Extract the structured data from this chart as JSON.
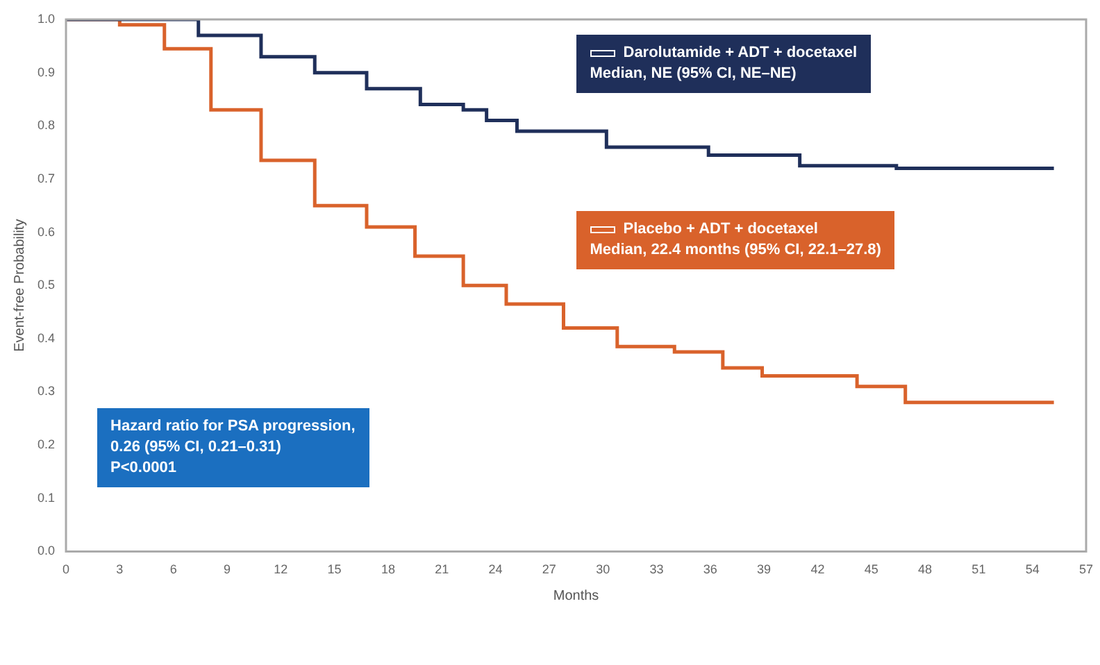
{
  "chart_data": {
    "type": "step",
    "xlabel": "Months",
    "ylabel": "Event-free Probability",
    "xlim": [
      0,
      57
    ],
    "xticks": [
      0,
      3,
      6,
      9,
      12,
      15,
      18,
      21,
      24,
      27,
      30,
      33,
      36,
      39,
      42,
      45,
      48,
      51,
      54,
      57
    ],
    "ylim": [
      0,
      1
    ],
    "yticks": [
      {
        "value": 0,
        "label": "0.0"
      },
      {
        "value": 0.1,
        "label": "0.1"
      },
      {
        "value": 0.2,
        "label": "0.2"
      },
      {
        "value": 0.3,
        "label": "0.3"
      },
      {
        "value": 0.4,
        "label": "0.4"
      },
      {
        "value": 0.5,
        "label": "0.5"
      },
      {
        "value": 0.6,
        "label": "0.6"
      },
      {
        "value": 0.7,
        "label": "0.7"
      },
      {
        "value": 0.8,
        "label": "0.8"
      },
      {
        "value": 0.9,
        "label": "0.9"
      },
      {
        "value": 1,
        "label": "1.0"
      }
    ],
    "series": [
      {
        "name": "Darolutamide + ADT + docetaxel",
        "color": "#1f2f5a",
        "x": [
          0,
          7.4,
          10.9,
          13.9,
          16.8,
          19.8,
          22.2,
          23.5,
          25.2,
          30.2,
          35.9,
          41,
          46.4,
          55.2
        ],
        "values": [
          1,
          0.97,
          0.93,
          0.9,
          0.87,
          0.84,
          0.83,
          0.81,
          0.79,
          0.76,
          0.745,
          0.725,
          0.72,
          0.72
        ]
      },
      {
        "name": "Placebo + ADT + docetaxel",
        "color": "#d9622b",
        "x": [
          0,
          3,
          5.5,
          8.1,
          10.9,
          13.9,
          16.8,
          19.5,
          22.2,
          24.6,
          27.8,
          30.8,
          34,
          36.7,
          38.9,
          44.2,
          46.9,
          55.2
        ],
        "values": [
          1,
          0.99,
          0.945,
          0.83,
          0.735,
          0.65,
          0.61,
          0.555,
          0.5,
          0.465,
          0.42,
          0.385,
          0.375,
          0.345,
          0.33,
          0.31,
          0.28,
          0.28
        ]
      }
    ],
    "annotations": [
      "Median, NE (95% CI, NE–NE)",
      "Median, 22.4 months (95% CI, 22.1–27.8)",
      "Hazard ratio for PSA progression,\n0.26 (95% CI, 0.21–0.31)\nP<0.0001"
    ],
    "grid": false,
    "legend": "top right"
  }
}
